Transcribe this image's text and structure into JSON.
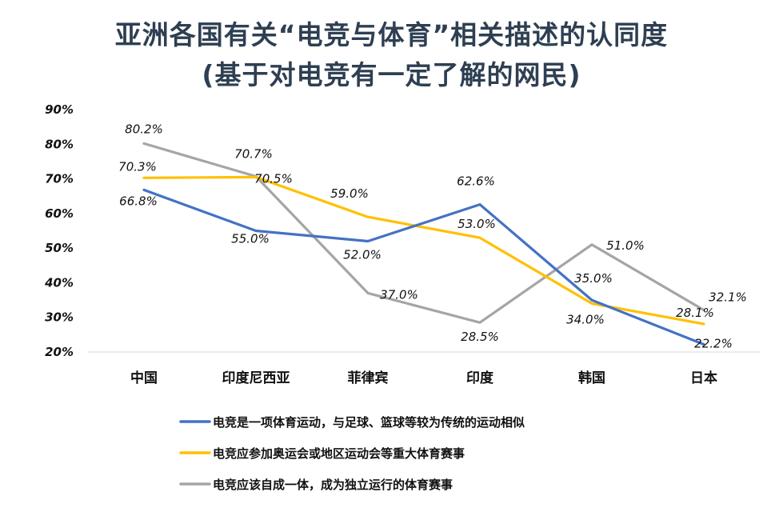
{
  "title_line1": "亚洲各国有关“电竞与体育”相关描述的认同度",
  "title_line2": "(基于对电竞有一定了解的网民)",
  "chart_data": {
    "type": "line",
    "categories": [
      "中国",
      "印度尼西亚",
      "菲律宾",
      "印度",
      "韩国",
      "日本"
    ],
    "ylim": [
      20,
      90
    ],
    "yticks": [
      "20%",
      "30%",
      "40%",
      "50%",
      "60%",
      "70%",
      "80%",
      "90%"
    ],
    "series": [
      {
        "name": "电竞是一项体育运动，与足球、篮球等较为传统的运动相似",
        "color": "#4472c4",
        "values": [
          66.8,
          55.0,
          52.0,
          62.6,
          35.0,
          22.2
        ],
        "labels": [
          "66.8%",
          "55.0%",
          "52.0%",
          "62.6%",
          "35.0%",
          "22.2%"
        ]
      },
      {
        "name": "电竞应参加奥运会或地区运动会等重大体育赛事",
        "color": "#ffc000",
        "values": [
          70.3,
          70.5,
          59.0,
          53.0,
          34.0,
          28.1
        ],
        "labels": [
          "70.3%",
          "70.5%",
          "59.0%",
          "53.0%",
          "34.0%",
          "28.1%"
        ]
      },
      {
        "name": "电竞应该自成一体，成为独立运行的体育赛事",
        "color": "#a5a5a5",
        "values": [
          80.2,
          70.7,
          37.0,
          28.5,
          51.0,
          32.1
        ],
        "labels": [
          "80.2%",
          "70.7%",
          "37.0%",
          "28.5%",
          "51.0%",
          "32.1%"
        ]
      }
    ],
    "legend_position": "bottom"
  }
}
